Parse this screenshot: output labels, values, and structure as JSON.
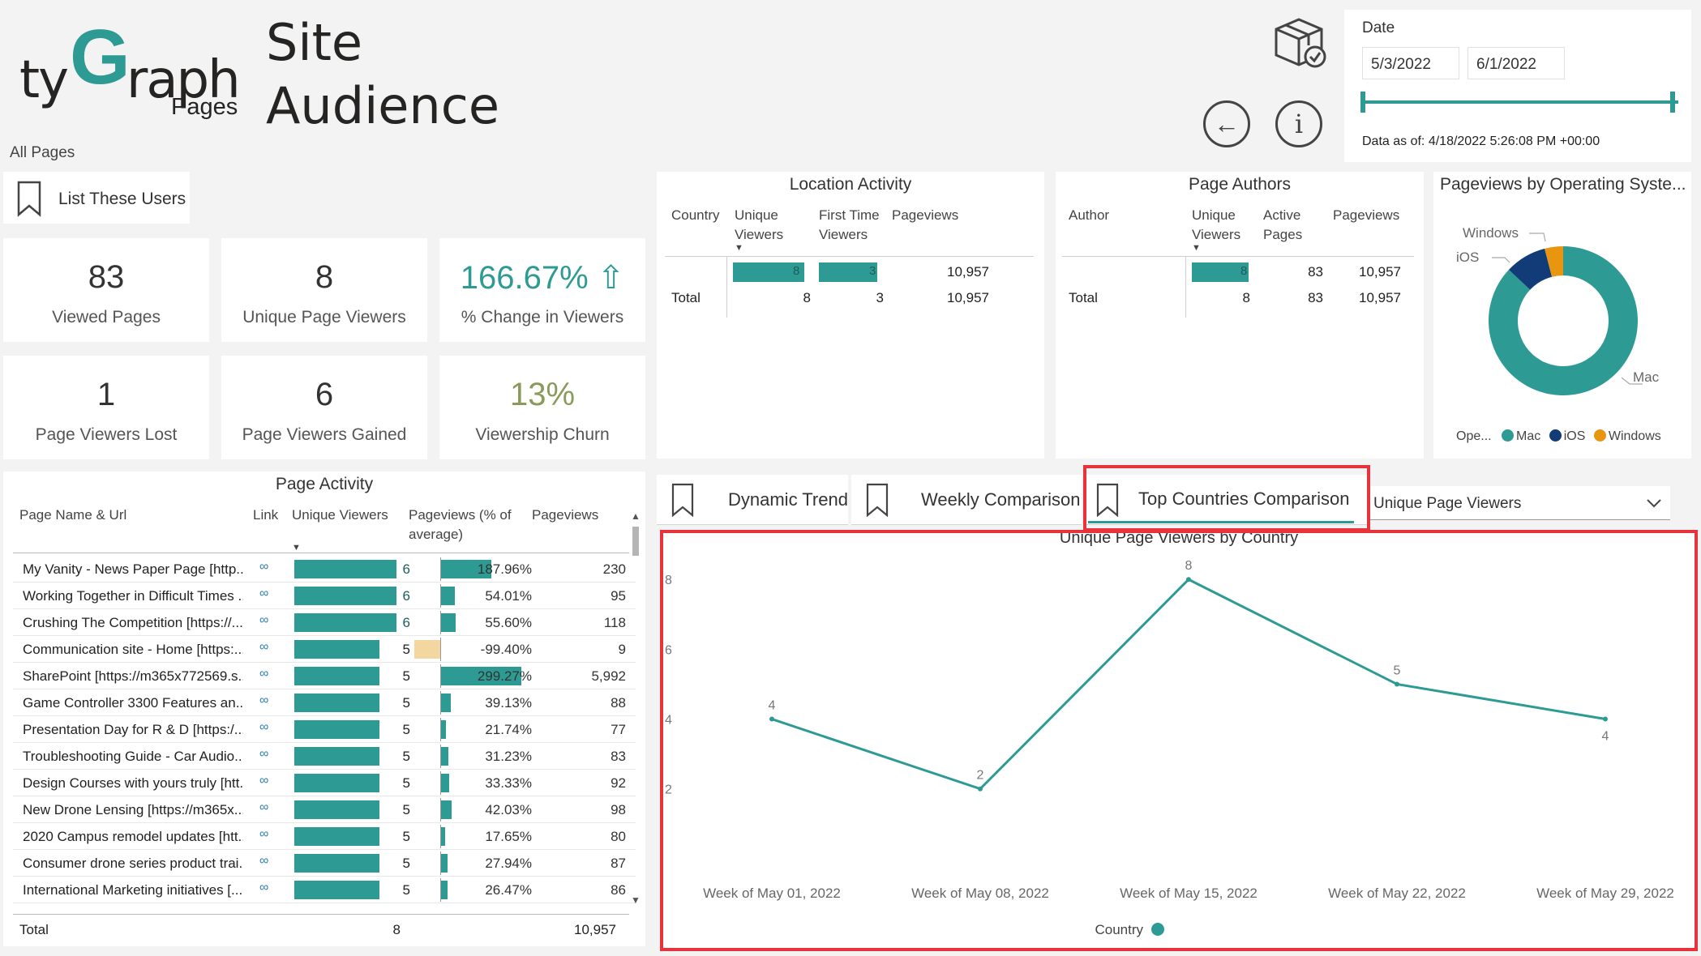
{
  "header": {
    "logo_ty": "ty",
    "logo_g": "G",
    "logo_raph": "raph",
    "logo_pages": "Pages",
    "title_line1": "Site",
    "title_line2": "Audience",
    "scope": "All Pages"
  },
  "date_filter": {
    "label": "Date",
    "start": "5/3/2022",
    "end": "6/1/2022",
    "data_as_of": "Data as of: 4/18/2022 5:26:08 PM +00:00"
  },
  "list_users_button": "List These Users",
  "kpis": [
    {
      "value": "83",
      "label": "Viewed Pages"
    },
    {
      "value": "8",
      "label": "Unique Page Viewers"
    },
    {
      "value": "166.67%",
      "label": "% Change in Viewers",
      "arrow": "⇧"
    },
    {
      "value": "1",
      "label": "Page Viewers Lost"
    },
    {
      "value": "6",
      "label": "Page Viewers Gained"
    },
    {
      "value": "13%",
      "label": "Viewership Churn"
    }
  ],
  "location_activity": {
    "title": "Location Activity",
    "headers": [
      "Country",
      "Unique Viewers",
      "First Time Viewers",
      "Pageviews"
    ],
    "row": {
      "unique_viewers": "8",
      "first_time": "3",
      "pageviews": "10,957"
    },
    "total": {
      "label": "Total",
      "unique_viewers": "8",
      "first_time": "3",
      "pageviews": "10,957"
    }
  },
  "page_authors": {
    "title": "Page Authors",
    "headers": [
      "Author",
      "Unique Viewers",
      "Active Pages",
      "Pageviews"
    ],
    "row": {
      "unique_viewers": "8",
      "active_pages": "83",
      "pageviews": "10,957"
    },
    "total": {
      "label": "Total",
      "unique_viewers": "8",
      "active_pages": "83",
      "pageviews": "10,957"
    }
  },
  "os_chart": {
    "title": "Pageviews by Operating Syste...",
    "legend_title": "Ope...",
    "labels": {
      "windows": "Windows",
      "ios": "iOS",
      "mac": "Mac"
    },
    "slices": [
      {
        "name": "Mac",
        "fraction": 0.87,
        "color": "#2e9a94"
      },
      {
        "name": "iOS",
        "fraction": 0.09,
        "color": "#123c78"
      },
      {
        "name": "Windows",
        "fraction": 0.04,
        "color": "#e8950f"
      }
    ]
  },
  "page_activity": {
    "title": "Page Activity",
    "headers": {
      "name": "Page Name & Url",
      "link": "Link",
      "uv": "Unique Viewers",
      "pct": "Pageviews (% of average)",
      "pv": "Pageviews"
    },
    "rows": [
      {
        "name": "My Vanity - News Paper Page [http...",
        "uv": 6,
        "uv_label": "6",
        "pct": 187.96,
        "pct_label": "187.96%",
        "pv": "230"
      },
      {
        "name": "Working Together in Difficult Times ...",
        "uv": 6,
        "uv_label": "6",
        "pct": 54.01,
        "pct_label": "54.01%",
        "pv": "95"
      },
      {
        "name": "Crushing The Competition [https://...",
        "uv": 6,
        "uv_label": "6",
        "pct": 55.6,
        "pct_label": "55.60%",
        "pv": "118"
      },
      {
        "name": "Communication site - Home [https:...",
        "uv": 5,
        "uv_label": "5",
        "pct": -99.4,
        "pct_label": "-99.40%",
        "pv": "9"
      },
      {
        "name": "SharePoint [https://m365x772569.s...",
        "uv": 5,
        "uv_label": "5",
        "pct": 299.27,
        "pct_label": "299.27%",
        "pv": "5,992"
      },
      {
        "name": "Game Controller 3300 Features an...",
        "uv": 5,
        "uv_label": "5",
        "pct": 39.13,
        "pct_label": "39.13%",
        "pv": "88"
      },
      {
        "name": "Presentation Day for R & D [https:/...",
        "uv": 5,
        "uv_label": "5",
        "pct": 21.74,
        "pct_label": "21.74%",
        "pv": "77"
      },
      {
        "name": "Troubleshooting Guide - Car Audio...",
        "uv": 5,
        "uv_label": "5",
        "pct": 31.23,
        "pct_label": "31.23%",
        "pv": "83"
      },
      {
        "name": "Design Courses with yours truly [htt...",
        "uv": 5,
        "uv_label": "5",
        "pct": 33.33,
        "pct_label": "33.33%",
        "pv": "92"
      },
      {
        "name": "New Drone Lensing [https://m365x...",
        "uv": 5,
        "uv_label": "5",
        "pct": 42.03,
        "pct_label": "42.03%",
        "pv": "98"
      },
      {
        "name": "2020 Campus remodel updates [htt...",
        "uv": 5,
        "uv_label": "5",
        "pct": 17.65,
        "pct_label": "17.65%",
        "pv": "80"
      },
      {
        "name": "Consumer drone series product trai...",
        "uv": 5,
        "uv_label": "5",
        "pct": 27.94,
        "pct_label": "27.94%",
        "pv": "87"
      },
      {
        "name": "International Marketing initiatives [...",
        "uv": 5,
        "uv_label": "5",
        "pct": 26.47,
        "pct_label": "26.47%",
        "pv": "86"
      }
    ],
    "total": {
      "label": "Total",
      "uv": "8",
      "pv": "10,957"
    }
  },
  "tabs": [
    {
      "label": "Dynamic Trend"
    },
    {
      "label": "Weekly Comparison"
    },
    {
      "label": "Top Countries Comparison"
    }
  ],
  "metric_dropdown": {
    "selected": "Unique Page Viewers"
  },
  "chart_data": {
    "type": "line",
    "title": "Unique Page Viewers by Country",
    "x": [
      "Week of May 01, 2022",
      "Week of May 08, 2022",
      "Week of May 15, 2022",
      "Week of May 22, 2022",
      "Week of May 29, 2022"
    ],
    "series": [
      {
        "name": "",
        "values": [
          4,
          2,
          8,
          5,
          4
        ],
        "color": "#2e9a94"
      }
    ],
    "yticks": [
      "2",
      "4",
      "6",
      "8"
    ],
    "ylim": [
      1.9,
      8.4
    ],
    "legend_title": "Country",
    "grid": false,
    "legend": "bottom-center"
  },
  "colors": {
    "teal": "#2e9a94",
    "highlight_red": "#e8323c",
    "negative_bar": "#f3d6a0"
  }
}
